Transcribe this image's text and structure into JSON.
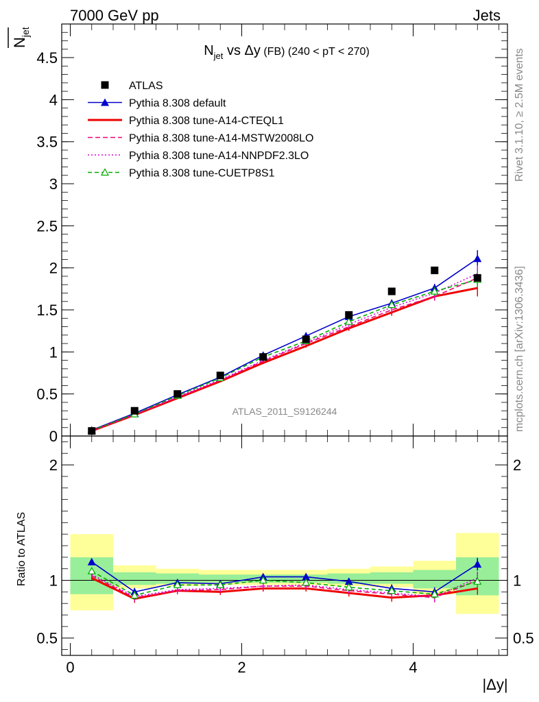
{
  "header": {
    "energy_label": "7000 GeV pp",
    "process_label": "Jets",
    "rivet_label": "Rivet 3.1.10, ≥ 2.5M events",
    "site_label": "mcplots.cern.ch [arXiv:1306.3436]",
    "analysis_label": "ATLAS_2011_S9126244"
  },
  "chart_data": {
    "type": "line",
    "title": {
      "main": "N",
      "sub": "jet",
      "rest": " vs Δy",
      "fb": " (FB)",
      "range": " (240 < pT < 270)"
    },
    "ylabel": {
      "main": "N",
      "sub": "jet"
    },
    "xlabel": "|Δy|",
    "ratio_ylabel": "Ratio to ATLAS",
    "xlim": [
      -0.1,
      5.1
    ],
    "ylim": [
      0,
      4.9
    ],
    "ratio_ylim": [
      0.35,
      2.25
    ],
    "x_ticks": [
      0,
      2,
      4
    ],
    "y_ticks": [
      0,
      0.5,
      1,
      1.5,
      2,
      2.5,
      3,
      3.5,
      4,
      4.5
    ],
    "ratio_y_ticks": [
      0.5,
      1,
      2
    ],
    "x": [
      0.25,
      0.75,
      1.25,
      1.75,
      2.25,
      2.75,
      3.25,
      3.75,
      4.25,
      4.75
    ],
    "bin_edges": [
      0,
      0.5,
      1,
      1.5,
      2,
      2.5,
      3,
      3.5,
      4,
      4.5,
      5
    ],
    "band_outer": [
      [
        0.74,
        1.4
      ],
      [
        0.93,
        1.13
      ],
      [
        0.95,
        1.1
      ],
      [
        0.96,
        1.09
      ],
      [
        0.96,
        1.09
      ],
      [
        0.96,
        1.09
      ],
      [
        0.95,
        1.1
      ],
      [
        0.94,
        1.12
      ],
      [
        0.88,
        1.17
      ],
      [
        0.71,
        1.41
      ]
    ],
    "band_inner": [
      [
        0.88,
        1.2
      ],
      [
        0.96,
        1.07
      ],
      [
        0.97,
        1.06
      ],
      [
        0.98,
        1.05
      ],
      [
        0.98,
        1.05
      ],
      [
        0.98,
        1.05
      ],
      [
        0.97,
        1.06
      ],
      [
        0.97,
        1.07
      ],
      [
        0.93,
        1.09
      ],
      [
        0.87,
        1.2
      ]
    ],
    "data": {
      "name": "ATLAS",
      "values": [
        0.06,
        0.3,
        0.5,
        0.72,
        0.94,
        1.15,
        1.44,
        1.72,
        1.97,
        1.88
      ]
    },
    "series": [
      {
        "name": "Pythia 8.308 default",
        "color": "#0000cc",
        "dash": "",
        "marker": "triangle",
        "values": [
          0.07,
          0.27,
          0.49,
          0.7,
          0.96,
          1.19,
          1.42,
          1.58,
          1.76,
          2.11
        ],
        "errors": [
          0.003,
          0.005,
          0.008,
          0.01,
          0.015,
          0.02,
          0.03,
          0.04,
          0.05,
          0.1
        ]
      },
      {
        "name": "Pythia 8.308 tune-A14-CTEQL1",
        "color": "#ee0000",
        "dash": "",
        "marker": "none",
        "width": 3,
        "values": [
          0.06,
          0.25,
          0.45,
          0.65,
          0.87,
          1.07,
          1.28,
          1.47,
          1.66,
          1.76
        ],
        "errors": [
          0.003,
          0.005,
          0.008,
          0.01,
          0.015,
          0.02,
          0.03,
          0.04,
          0.05,
          0.1
        ]
      },
      {
        "name": "Pythia 8.308 tune-A14-MSTW2008LO",
        "color": "#ee0077",
        "dash": "7,4",
        "marker": "none",
        "values": [
          0.062,
          0.255,
          0.46,
          0.66,
          0.89,
          1.1,
          1.3,
          1.5,
          1.66,
          1.88
        ],
        "errors": [
          0.003,
          0.005,
          0.008,
          0.01,
          0.015,
          0.02,
          0.03,
          0.04,
          0.05,
          0.1
        ]
      },
      {
        "name": "Pythia 8.308 tune-A14-NNPDF2.3LO",
        "color": "#dd00dd",
        "dash": "2,3",
        "marker": "none",
        "values": [
          0.063,
          0.258,
          0.465,
          0.67,
          0.9,
          1.11,
          1.33,
          1.53,
          1.7,
          1.93
        ],
        "errors": [
          0.003,
          0.005,
          0.008,
          0.01,
          0.015,
          0.02,
          0.03,
          0.04,
          0.05,
          0.1
        ]
      },
      {
        "name": "Pythia 8.308 tune-CUETP8S1",
        "color": "#00aa00",
        "dash": "6,4",
        "marker": "open-triangle",
        "values": [
          0.065,
          0.26,
          0.48,
          0.69,
          0.94,
          1.13,
          1.36,
          1.56,
          1.72,
          1.86
        ],
        "errors": [
          0.003,
          0.005,
          0.008,
          0.01,
          0.015,
          0.02,
          0.03,
          0.04,
          0.05,
          0.1
        ]
      }
    ],
    "ratio": {
      "data_errors": [
        0.0,
        0.02,
        0.015,
        0.012,
        0.012,
        0.012,
        0.015,
        0.02,
        0.025,
        0.04
      ],
      "series": [
        {
          "name": "Pythia 8.308 default",
          "values": [
            1.16,
            0.9,
            0.98,
            0.97,
            1.03,
            1.03,
            0.99,
            0.93,
            0.9,
            1.14
          ]
        },
        {
          "name": "Pythia 8.308 tune-A14-CTEQL1",
          "values": [
            1.02,
            0.84,
            0.91,
            0.9,
            0.93,
            0.93,
            0.89,
            0.85,
            0.87,
            0.93
          ]
        },
        {
          "name": "Pythia 8.308 tune-A14-MSTW2008LO",
          "values": [
            1.04,
            0.85,
            0.91,
            0.92,
            0.95,
            0.95,
            0.91,
            0.88,
            0.85,
            1.0
          ]
        },
        {
          "name": "Pythia 8.308 tune-A14-NNPDF2.3LO",
          "values": [
            1.05,
            0.86,
            0.92,
            0.93,
            0.95,
            0.96,
            0.92,
            0.89,
            0.86,
            1.02
          ]
        },
        {
          "name": "Pythia 8.308 tune-CUETP8S1",
          "values": [
            1.08,
            0.87,
            0.96,
            0.96,
            1.0,
            0.98,
            0.94,
            0.91,
            0.88,
            0.99
          ]
        }
      ]
    }
  }
}
